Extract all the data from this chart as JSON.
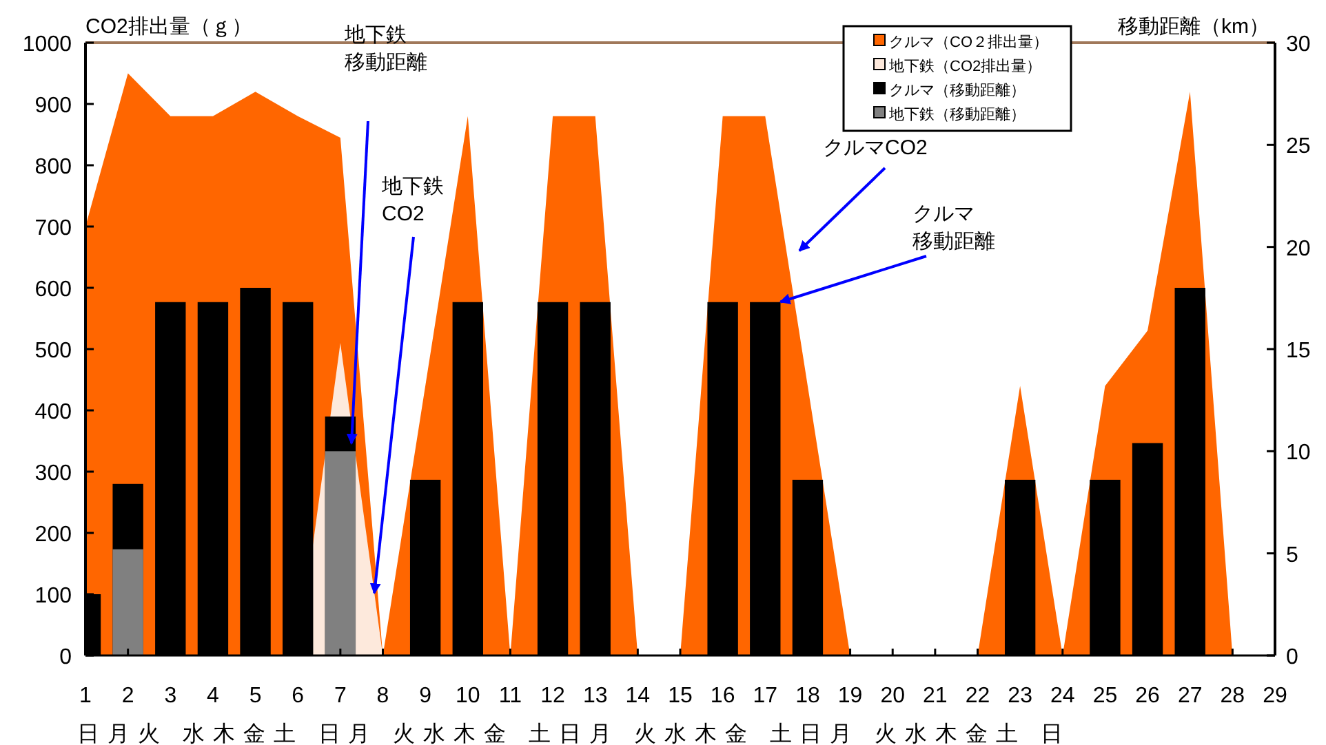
{
  "chart_data": {
    "type": "area",
    "ylabel": "CO2排出量（ｇ）",
    "y2label": "移動距離（km）",
    "x": [
      1,
      2,
      3,
      4,
      5,
      6,
      7,
      8,
      9,
      10,
      11,
      12,
      13,
      14,
      15,
      16,
      17,
      18,
      19,
      20,
      21,
      22,
      23,
      24,
      25,
      26,
      27,
      28,
      29
    ],
    "xlim": [
      1,
      29
    ],
    "xticks": [
      1,
      2,
      3,
      4,
      5,
      6,
      7,
      8,
      9,
      10,
      11,
      12,
      13,
      14,
      15,
      16,
      17,
      18,
      19,
      20,
      21,
      22,
      23,
      24,
      25,
      26,
      27,
      28,
      29
    ],
    "ylim": [
      0,
      1000
    ],
    "yticks": [
      0,
      100,
      200,
      300,
      400,
      500,
      600,
      700,
      800,
      900,
      1000
    ],
    "y2lim": [
      0,
      30
    ],
    "y2ticks": [
      0,
      5,
      10,
      15,
      20,
      25,
      30
    ],
    "series": [
      {
        "name": "クルマ（CO２排出量）",
        "color": "#ff6600",
        "values": [
          700,
          950,
          880,
          880,
          920,
          880,
          845,
          0,
          440,
          880,
          0,
          880,
          880,
          0,
          0,
          880,
          880,
          440,
          0,
          0,
          0,
          0,
          440,
          0,
          440,
          530,
          920,
          0,
          0
        ]
      },
      {
        "name": "地下鉄（CO2排出量）",
        "color": "#fde9dc",
        "values": [
          0,
          null,
          0,
          0,
          0,
          0,
          510,
          0,
          0,
          0,
          0,
          0,
          0,
          0,
          0,
          0,
          0,
          0,
          0,
          0,
          0,
          0,
          0,
          0,
          0,
          0,
          0,
          0,
          0
        ]
      },
      {
        "type": "bar",
        "axis": "y2",
        "name": "クルマ（移動距離）",
        "color": "#000000",
        "values": [
          3,
          8.4,
          17.3,
          17.3,
          18,
          17.3,
          11.7,
          null,
          8.6,
          17.3,
          null,
          17.3,
          17.3,
          null,
          null,
          17.3,
          17.3,
          8.6,
          null,
          null,
          null,
          null,
          8.6,
          null,
          8.6,
          10.4,
          18,
          null,
          null
        ]
      },
      {
        "type": "bar",
        "axis": "y2",
        "name": "地下鉄（移動距離）",
        "color": "#808080",
        "values": [
          null,
          5.2,
          null,
          null,
          null,
          null,
          10,
          null,
          null,
          null,
          null,
          null,
          null,
          null,
          null,
          null,
          null,
          null,
          null,
          null,
          null,
          null,
          null,
          null,
          null,
          null,
          null,
          null,
          null
        ]
      }
    ],
    "legend": "top right",
    "annotations": [
      "地下鉄移動距離",
      {
        "text": "地下鉄CO2",
        "x": 7.8,
        "y": 102
      },
      "クルマCO2",
      {
        "text": "クルマ移動距離",
        "x": 17.36,
        "y": 577
      },
      "日月火 水木金土 日月 火水木金 土日月 火水木金 土日月 火水木金土 日"
    ]
  }
}
